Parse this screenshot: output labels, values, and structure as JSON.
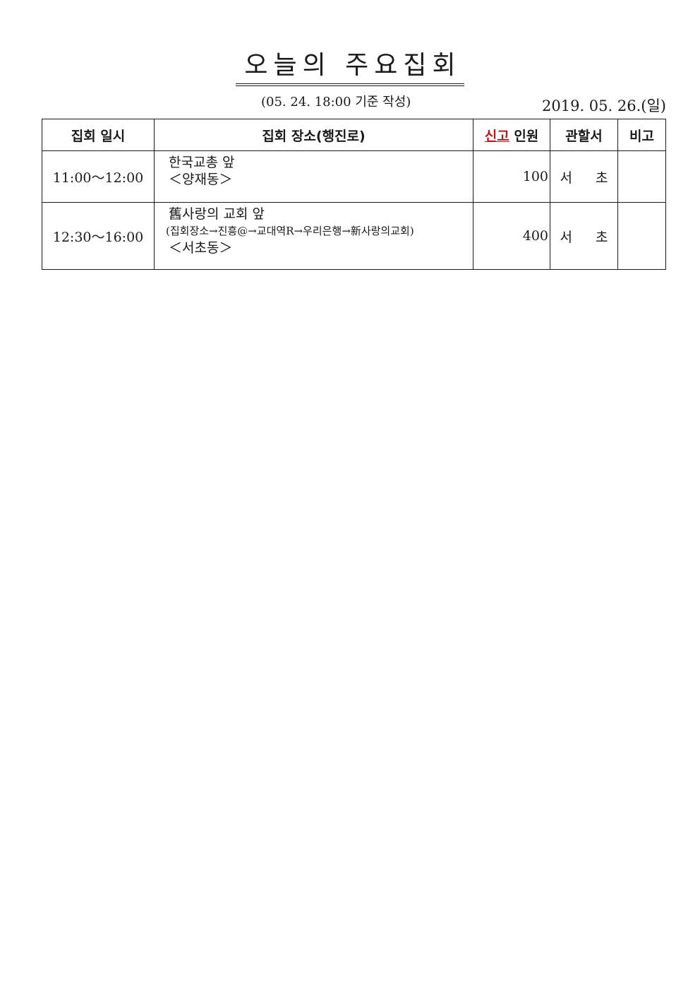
{
  "document": {
    "title": "오늘의 주요집회",
    "basis_note": "(05. 24. 18:00 기준 작성)",
    "date": "2019. 05. 26.(일)"
  },
  "table": {
    "headers": {
      "time": "집회 일시",
      "place": "집회 장소(행진로)",
      "count_red": "신고",
      "count_rest": "인원",
      "station": "관할서",
      "note": "비고"
    },
    "rows": [
      {
        "time": "11:00～12:00",
        "place_line1": "한국교총 앞",
        "place_line2": "＜양재동＞",
        "count": "100",
        "station": "서  초",
        "note": ""
      },
      {
        "time": "12:30～16:00",
        "place_line1": "舊사랑의 교회 앞",
        "place_route": "(집회장소→진흥@→교대역R→우리은행→新사랑의교회)",
        "place_line2": "＜서초동＞",
        "count": "400",
        "station": "서  초",
        "note": ""
      }
    ]
  }
}
